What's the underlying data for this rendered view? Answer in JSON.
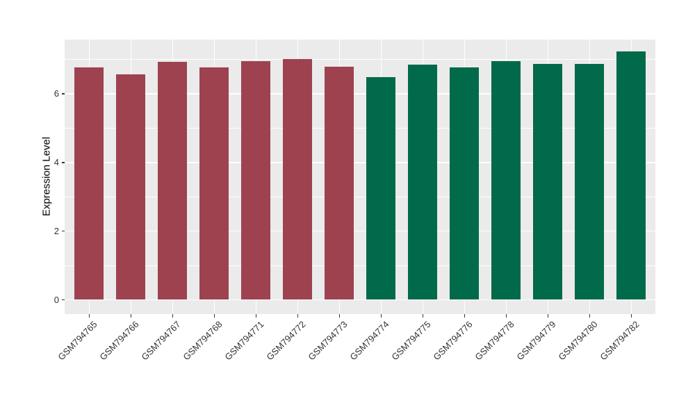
{
  "chart": {
    "ylabel": "Expression Level"
  },
  "chart_data": {
    "type": "bar",
    "title": "",
    "xlabel": "",
    "ylabel": "Expression Level",
    "categories": [
      "GSM794765",
      "GSM794766",
      "GSM794767",
      "GSM794768",
      "GSM794771",
      "GSM794772",
      "GSM794773",
      "GSM794774",
      "GSM794775",
      "GSM794776",
      "GSM794778",
      "GSM794779",
      "GSM794780",
      "GSM794782"
    ],
    "values": [
      6.77,
      6.57,
      6.93,
      6.77,
      6.95,
      7.01,
      6.79,
      6.49,
      6.85,
      6.77,
      6.95,
      6.88,
      6.87,
      7.23
    ],
    "groups": [
      "maroon",
      "maroon",
      "maroon",
      "maroon",
      "maroon",
      "maroon",
      "maroon",
      "green",
      "green",
      "green",
      "green",
      "green",
      "green",
      "green"
    ],
    "group_colors": {
      "maroon": "#9E4250",
      "green": "#006A4B"
    },
    "ylim": [
      0,
      7.6
    ],
    "yticks": [
      0,
      2,
      4,
      6
    ],
    "yticks_minor": [
      1,
      3,
      5,
      7
    ],
    "x_tick_angle_deg": 45,
    "legend": "none",
    "grid": "on",
    "colors": {
      "panel_background": "#EBEBEB",
      "gridline": "#FFFFFF",
      "axis_text": "#333333",
      "axis_title": "#000000",
      "figure_background": "#FFFFFF"
    }
  }
}
